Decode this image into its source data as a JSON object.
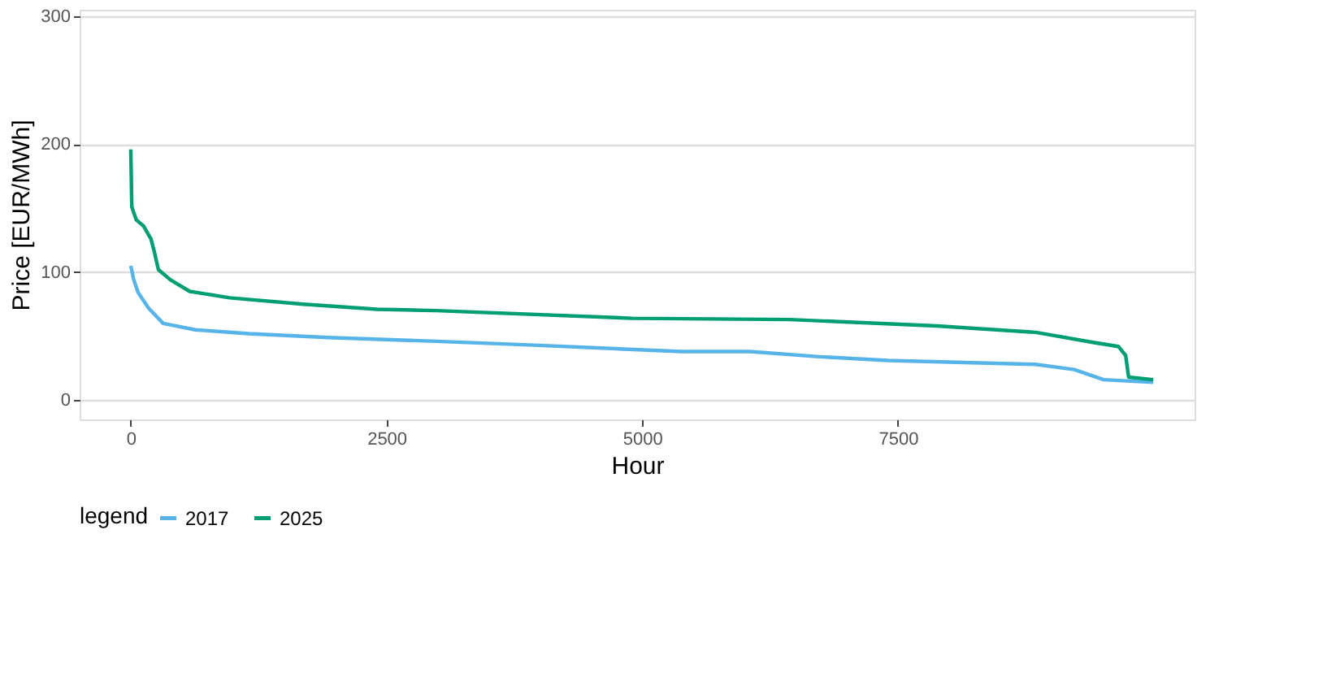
{
  "chart_data": {
    "type": "line",
    "xlabel": "Hour",
    "ylabel": "Price [EUR/MWh]",
    "legend_title": "legend",
    "legend": "bottom",
    "grid": "y",
    "line_style": "solid",
    "marker": "none",
    "xlim": [
      -500,
      10400
    ],
    "xticks": [
      0,
      2500,
      5000,
      7500
    ],
    "ylim": [
      -15,
      305
    ],
    "yticks": [
      0,
      100,
      200,
      300
    ],
    "series": [
      {
        "name": "2017",
        "color": "#56b4e9",
        "x": [
          0,
          29,
          72,
          173,
          317,
          630,
          1153,
          1926,
          2983,
          3944,
          5384,
          6052,
          6729,
          7402,
          8843,
          9222,
          9510,
          9996
        ],
        "values": [
          105,
          94,
          84,
          72,
          60,
          55,
          52,
          49,
          46,
          43,
          38,
          38,
          34,
          31,
          28,
          24,
          16,
          14
        ]
      },
      {
        "name": "2025",
        "color": "#009e73",
        "x": [
          0,
          10,
          53,
          125,
          197,
          230,
          270,
          389,
          576,
          965,
          1686,
          2406,
          2983,
          4900,
          6441,
          7882,
          8847,
          9419,
          9654,
          9726,
          9755,
          9996
        ],
        "values": [
          196,
          151,
          141,
          136,
          126,
          116,
          102,
          94,
          85,
          80,
          75,
          71,
          70,
          64,
          63,
          58,
          53,
          45,
          42,
          35,
          18,
          16
        ]
      }
    ]
  }
}
